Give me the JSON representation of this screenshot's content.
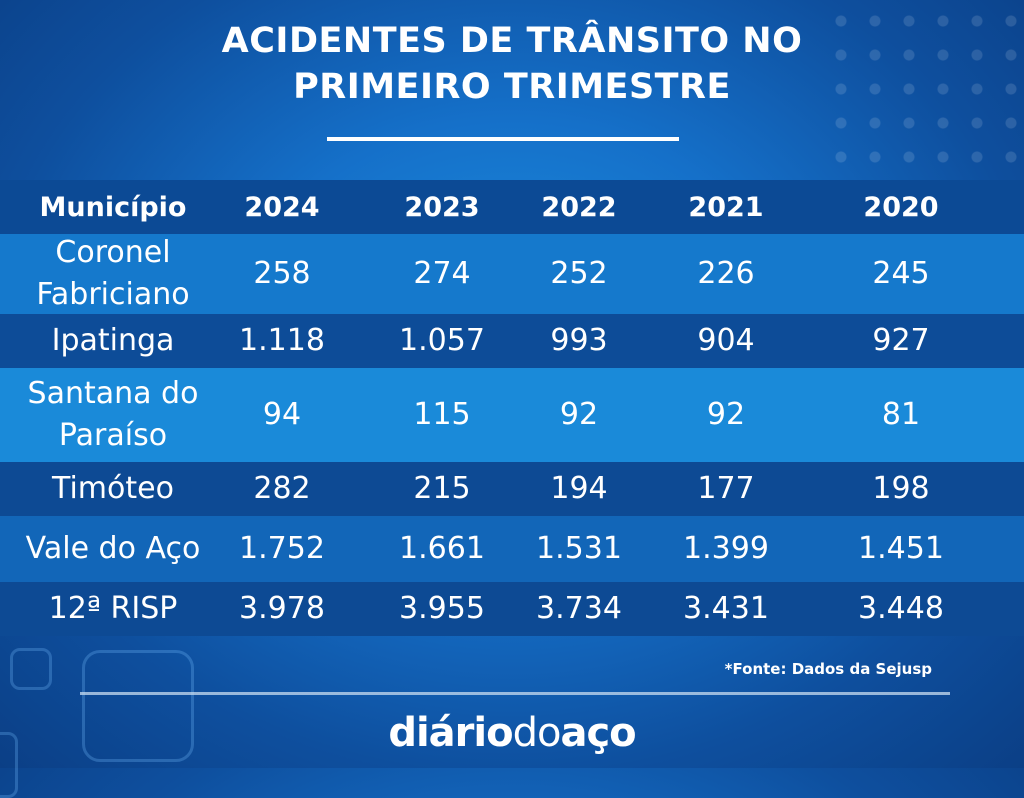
{
  "header": {
    "title_line1": "ACIDENTES DE TRÂNSITO NO",
    "title_line2": "PRIMEIRO TRIMESTRE"
  },
  "colors": {
    "background_dark": "#0b3f86",
    "background_light": "#1c8fe0",
    "row_band_dark": "#0c4893",
    "row_band_light": "#1a86d8",
    "text": "#ffffff"
  },
  "chart_data": {
    "type": "table",
    "title": "ACIDENTES DE TRÂNSITO NO PRIMEIRO TRIMESTRE",
    "columns": [
      "Município",
      "2024",
      "2023",
      "2022",
      "2021",
      "2020"
    ],
    "rows": [
      {
        "label_lines": [
          "Coronel",
          "Fabriciano"
        ],
        "values": [
          "258",
          "274",
          "252",
          "226",
          "245"
        ]
      },
      {
        "label_lines": [
          "Ipatinga"
        ],
        "values": [
          "1.118",
          "1.057",
          "993",
          "904",
          "927"
        ]
      },
      {
        "label_lines": [
          "Santana do",
          "Paraíso"
        ],
        "values": [
          "94",
          "115",
          "92",
          "92",
          "81"
        ]
      },
      {
        "label_lines": [
          "Timóteo"
        ],
        "values": [
          "282",
          "215",
          "194",
          "177",
          "198"
        ]
      },
      {
        "label_lines": [
          "Vale do Aço"
        ],
        "values": [
          "1.752",
          "1.661",
          "1.531",
          "1.399",
          "1.451"
        ]
      },
      {
        "label_lines": [
          "12ª RISP"
        ],
        "values": [
          "3.978",
          "3.955",
          "3.734",
          "3.431",
          "3.448"
        ]
      }
    ]
  },
  "footer": {
    "source": "*Fonte:  Dados da Sejusp",
    "logo_bold": "diário",
    "logo_light": "do",
    "logo_bold2": "aço"
  }
}
